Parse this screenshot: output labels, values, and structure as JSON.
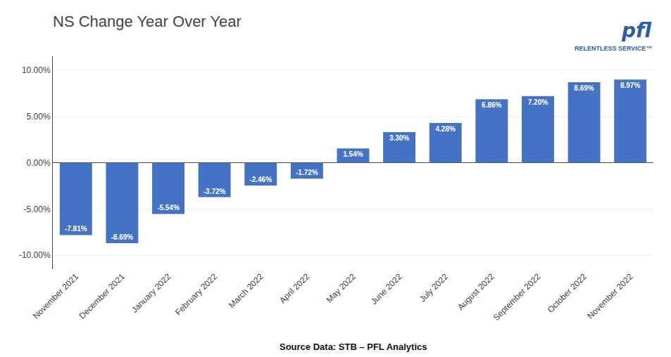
{
  "chart_data": {
    "type": "bar",
    "title": "NS Change Year Over Year",
    "categories": [
      "November 2021",
      "December 2021",
      "January 2022",
      "February 2022",
      "March 2022",
      "April 2022",
      "May 2022",
      "June 2022",
      "July 2022",
      "August 2022",
      "September 2022",
      "October 2022",
      "November 2022"
    ],
    "values": [
      -7.81,
      -8.69,
      -5.54,
      -3.72,
      -2.46,
      -1.72,
      1.54,
      3.3,
      4.28,
      6.86,
      7.2,
      8.69,
      8.97
    ],
    "value_labels": [
      "-7.81%",
      "-8.69%",
      "-5.54%",
      "-3.72%",
      "-2.46%",
      "-1.72%",
      "1.54%",
      "3.30%",
      "4.28%",
      "6.86%",
      "7.20%",
      "8.69%",
      "8.97%"
    ],
    "data_labels": true,
    "color": "#4472C4",
    "ylim": [
      -11.5,
      11.5
    ],
    "yticks": [
      {
        "value": -10,
        "label": "-10.00%"
      },
      {
        "value": -5,
        "label": "-5.00%"
      },
      {
        "value": 0,
        "label": "0.00%"
      },
      {
        "value": 5,
        "label": "5.00%"
      },
      {
        "value": 10,
        "label": "10.00%"
      }
    ],
    "grid": true,
    "annotations": [
      "pfl",
      "RELENTLESS SERVICE™",
      "Source Data: STB – PFL Analytics"
    ]
  }
}
